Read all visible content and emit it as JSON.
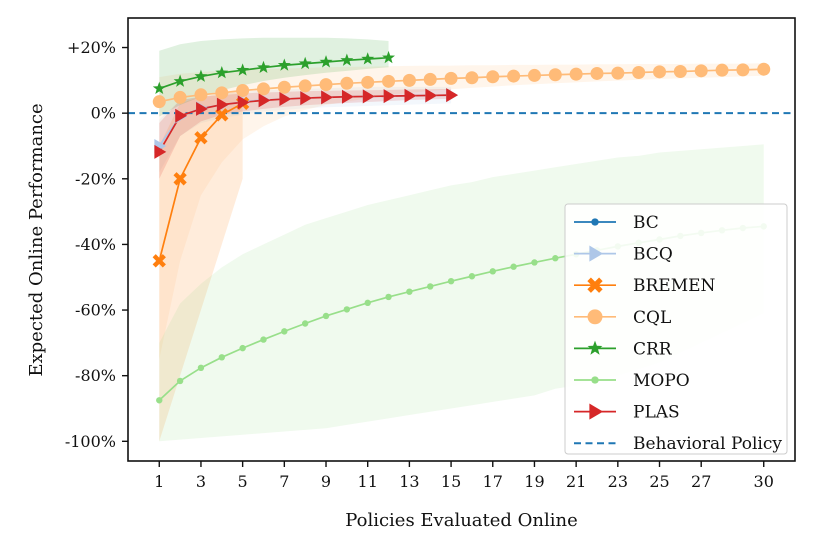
{
  "chart_data": {
    "type": "line",
    "title": "",
    "xlabel": "Policies Evaluated Online",
    "ylabel": "Expected Online Performance",
    "xlim": [
      -0.5,
      31.5
    ],
    "ylim": [
      -106,
      29
    ],
    "x_ticks": [
      1,
      3,
      5,
      7,
      9,
      11,
      13,
      15,
      17,
      19,
      21,
      23,
      25,
      27,
      30
    ],
    "y_ticks": [
      -100,
      -80,
      -60,
      -40,
      -20,
      0,
      20
    ],
    "y_tick_labels": [
      "-100%",
      "-80%",
      "-60%",
      "-40%",
      "-20%",
      "0%",
      "+20%"
    ],
    "baseline": {
      "name": "Behavioral Policy",
      "value": 0,
      "color": "#1f77b4"
    },
    "legend_position": "lower-right",
    "series": [
      {
        "name": "BC",
        "color": "#1f77b4",
        "marker": "dot",
        "x": [],
        "values": [],
        "lower": [],
        "upper": []
      },
      {
        "name": "BCQ",
        "color": "#aec7e8",
        "marker": "triangle-right",
        "x": [
          1,
          2,
          3,
          4,
          5,
          6,
          7,
          8,
          9,
          10,
          11,
          12,
          13,
          14,
          15
        ],
        "values": [
          -10,
          -1,
          1.5,
          2.5,
          3.5,
          4,
          4.3,
          4.6,
          4.8,
          5,
          5.1,
          5.2,
          5.3,
          5.4,
          5.5
        ],
        "lower": [
          -18,
          -7,
          -3,
          -1.5,
          -0.5,
          0.5,
          1,
          1.5,
          1.8,
          2,
          2.2,
          2.4,
          2.6,
          2.8,
          3
        ],
        "upper": [
          -2,
          4,
          5,
          6,
          6.5,
          7,
          7.2,
          7.4,
          7.6,
          7.8,
          8,
          8,
          8,
          8,
          8
        ]
      },
      {
        "name": "BREMEN",
        "color": "#ff7f0e",
        "marker": "x",
        "x": [
          1,
          2,
          3,
          4,
          5
        ],
        "values": [
          -45,
          -20,
          -7.5,
          -0.5,
          3
        ],
        "lower": [
          -100,
          -80,
          -60,
          -40,
          -20
        ],
        "upper": [
          -10,
          3,
          5,
          6,
          6.5
        ]
      },
      {
        "name": "CQL",
        "color": "#ffbb78",
        "marker": "circle",
        "x": [
          1,
          2,
          3,
          4,
          5,
          6,
          7,
          8,
          9,
          10,
          11,
          12,
          13,
          14,
          15,
          16,
          17,
          18,
          19,
          20,
          21,
          22,
          23,
          24,
          25,
          26,
          27,
          28,
          29,
          30
        ],
        "values": [
          3.5,
          4.8,
          5.6,
          6.2,
          6.9,
          7.4,
          7.9,
          8.3,
          8.7,
          9.1,
          9.4,
          9.7,
          10,
          10.3,
          10.6,
          10.8,
          11.1,
          11.3,
          11.5,
          11.7,
          11.9,
          12.1,
          12.2,
          12.4,
          12.6,
          12.7,
          12.9,
          13.1,
          13.2,
          13.4
        ],
        "lower": [
          -75,
          -45,
          -25,
          -15,
          -8,
          -4,
          -1,
          1,
          2.5,
          3.5,
          4.5,
          5.5,
          6.2,
          6.8,
          7.3,
          7.7,
          8.1,
          8.5,
          8.8,
          9.1,
          9.4,
          9.7,
          9.9,
          10.2,
          10.4,
          10.6,
          10.8,
          11,
          11.2,
          11.4
        ],
        "upper": [
          11,
          12,
          12.5,
          13,
          13.2,
          13.4,
          13.6,
          13.8,
          14,
          14.1,
          14.2,
          14.3,
          14.4,
          14.5,
          14.5,
          14.6,
          14.6,
          14.7,
          14.7,
          14.8,
          14.8,
          14.9,
          14.9,
          15,
          15,
          15,
          15.1,
          15.1,
          15.1,
          15.2
        ]
      },
      {
        "name": "CRR",
        "color": "#2ca02c",
        "marker": "star",
        "x": [
          1,
          2,
          3,
          4,
          5,
          6,
          7,
          8,
          9,
          10,
          11,
          12
        ],
        "values": [
          7.5,
          9.7,
          11.2,
          12.3,
          13.1,
          13.9,
          14.6,
          15.1,
          15.6,
          16.1,
          16.5,
          16.9
        ],
        "lower": [
          -1,
          2.5,
          5,
          7,
          8.5,
          9.8,
          10.8,
          11.6,
          12.3,
          12.9,
          13.5,
          14
        ],
        "upper": [
          19,
          21,
          22,
          22.5,
          22.8,
          23,
          23,
          23,
          23,
          22.8,
          22.5,
          22
        ]
      },
      {
        "name": "MOPO",
        "color": "#98df8a",
        "marker": "dot",
        "x": [
          1,
          2,
          3,
          4,
          5,
          6,
          7,
          8,
          9,
          10,
          11,
          12,
          13,
          14,
          15,
          16,
          17,
          18,
          19,
          20,
          21,
          22,
          23,
          24,
          25,
          26,
          27,
          28,
          29,
          30
        ],
        "values": [
          -87.5,
          -81.6,
          -77.6,
          -74.4,
          -71.6,
          -69,
          -66.5,
          -64.1,
          -61.8,
          -59.8,
          -57.8,
          -56,
          -54.4,
          -52.8,
          -51.2,
          -49.7,
          -48.2,
          -46.8,
          -45.5,
          -44.2,
          -43,
          -41.8,
          -40.6,
          -39.5,
          -38.5,
          -37.4,
          -36.5,
          -35.7,
          -35,
          -34.5
        ],
        "lower": [
          -100,
          -99.5,
          -99,
          -98.5,
          -98,
          -97.5,
          -97,
          -96.5,
          -96,
          -95,
          -94,
          -93,
          -92,
          -91,
          -90,
          -89,
          -88,
          -87,
          -86,
          -84,
          -83,
          -81,
          -80,
          -78,
          -76,
          -73,
          -70,
          -67,
          -64,
          -61
        ],
        "upper": [
          -70,
          -58,
          -52,
          -47,
          -43,
          -40,
          -37,
          -34,
          -32,
          -30,
          -28,
          -26.5,
          -25,
          -23.5,
          -22,
          -21,
          -19.5,
          -18.5,
          -17.5,
          -16.5,
          -15.5,
          -14.5,
          -13.5,
          -13,
          -12,
          -11.5,
          -11,
          -10.5,
          -10,
          -9.5
        ]
      },
      {
        "name": "PLAS",
        "color": "#d62728",
        "marker": "triangle-right",
        "x": [
          1,
          2,
          3,
          4,
          5,
          6,
          7,
          8,
          9,
          10,
          11,
          12,
          13,
          14,
          15
        ],
        "values": [
          -11.8,
          -0.8,
          1.3,
          2.6,
          3.3,
          3.9,
          4.3,
          4.6,
          4.8,
          5,
          5.1,
          5.2,
          5.3,
          5.4,
          5.5
        ],
        "lower": [
          -20,
          -7,
          -2.5,
          -0.5,
          0.5,
          1.3,
          1.9,
          2.4,
          2.8,
          3.1,
          3.4,
          3.7,
          4,
          4.2,
          4.4
        ],
        "upper": [
          -3,
          4,
          5,
          5.5,
          6,
          6.3,
          6.5,
          6.7,
          6.8,
          6.9,
          7,
          7.1,
          7.2,
          7.3,
          7.4
        ]
      }
    ]
  }
}
